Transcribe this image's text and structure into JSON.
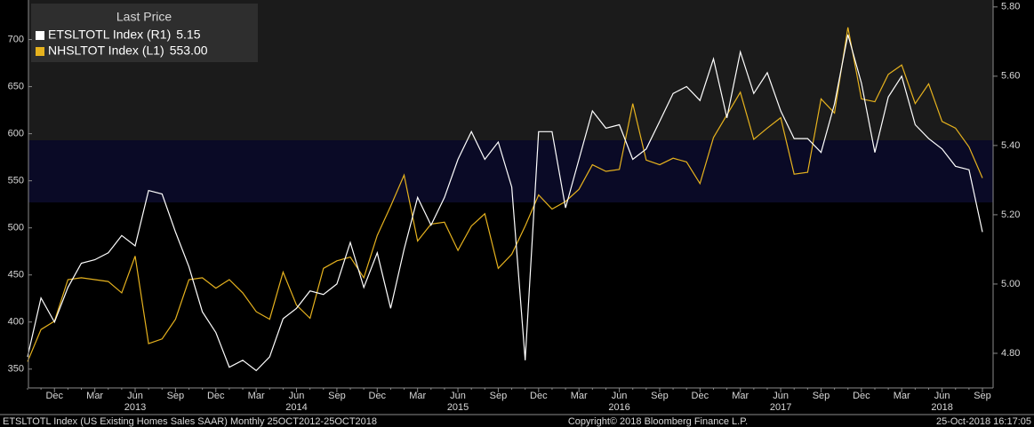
{
  "chart_data": {
    "type": "line",
    "legend_title": "Last Price",
    "categories": [
      null,
      null,
      "Dec",
      null,
      null,
      "Mar",
      null,
      null,
      "Jun",
      null,
      null,
      "Sep",
      null,
      null,
      "Dec",
      null,
      null,
      "Mar",
      null,
      null,
      "Jun",
      null,
      null,
      "Sep",
      null,
      null,
      "Dec",
      null,
      null,
      "Mar",
      null,
      null,
      "Jun",
      null,
      null,
      "Sep",
      null,
      null,
      "Dec",
      null,
      null,
      "Mar",
      null,
      null,
      "Jun",
      null,
      null,
      "Sep",
      null,
      null,
      "Dec",
      null,
      null,
      "Mar",
      null,
      null,
      "Jun",
      null,
      null,
      "Sep",
      null,
      null,
      "Dec",
      null,
      null,
      "Mar",
      null,
      null,
      "Jun",
      null,
      null,
      "Sep"
    ],
    "year_labels": [
      null,
      null,
      null,
      null,
      null,
      null,
      null,
      null,
      "2013",
      null,
      null,
      null,
      null,
      null,
      null,
      null,
      null,
      null,
      null,
      null,
      "2014",
      null,
      null,
      null,
      null,
      null,
      null,
      null,
      null,
      null,
      null,
      null,
      "2015",
      null,
      null,
      null,
      null,
      null,
      null,
      null,
      null,
      null,
      null,
      null,
      "2016",
      null,
      null,
      null,
      null,
      null,
      null,
      null,
      null,
      null,
      null,
      null,
      "2017",
      null,
      null,
      null,
      null,
      null,
      null,
      null,
      null,
      null,
      null,
      null,
      "2018",
      null,
      null,
      null
    ],
    "series": [
      {
        "name": "ETSLTOTL Index (R1)",
        "last_label": "5.15",
        "color": "#ffffff",
        "axis": "y2",
        "values": [
          4.79,
          4.96,
          4.89,
          4.99,
          5.06,
          5.07,
          5.09,
          5.14,
          5.11,
          5.27,
          5.26,
          5.15,
          5.05,
          4.92,
          4.86,
          4.76,
          4.78,
          4.75,
          4.79,
          4.9,
          4.93,
          4.98,
          4.97,
          5.0,
          5.12,
          4.99,
          5.09,
          4.93,
          5.1,
          5.25,
          5.17,
          5.25,
          5.36,
          5.44,
          5.36,
          5.41,
          5.28,
          4.78,
          5.44,
          5.44,
          5.22,
          5.36,
          5.5,
          5.45,
          5.46,
          5.36,
          5.39,
          5.47,
          5.55,
          5.57,
          5.53,
          5.65,
          5.48,
          5.67,
          5.55,
          5.61,
          5.5,
          5.42,
          5.42,
          5.38,
          5.52,
          5.72,
          5.58,
          5.38,
          5.54,
          5.6,
          5.46,
          5.42,
          5.39,
          5.34,
          5.33,
          5.15
        ]
      },
      {
        "name": "NHSLTOT Index (L1)",
        "last_label": "553.00",
        "color": "#e6b21e",
        "axis": "y",
        "values": [
          358,
          392,
          401,
          445,
          447,
          445,
          443,
          431,
          470,
          377,
          382,
          403,
          445,
          447,
          436,
          445,
          431,
          411,
          403,
          453,
          418,
          404,
          457,
          465,
          469,
          447,
          492,
          523,
          556,
          486,
          504,
          506,
          476,
          502,
          515,
          457,
          472,
          502,
          535,
          520,
          528,
          541,
          567,
          560,
          562,
          632,
          572,
          567,
          574,
          570,
          547,
          596,
          620,
          644,
          594,
          606,
          617,
          557,
          559,
          637,
          622,
          713,
          637,
          634,
          663,
          673,
          632,
          653,
          613,
          606,
          586,
          553
        ]
      }
    ],
    "ylim": [
      330,
      742
    ],
    "yticks": [
      350,
      400,
      450,
      500,
      550,
      600,
      650,
      700
    ],
    "y2lim": [
      4.7,
      5.82
    ],
    "y2ticks": [
      {
        "value": 4.8,
        "label": "4.80"
      },
      {
        "value": 5.0,
        "label": "5.00"
      },
      {
        "value": 5.2,
        "label": "5.20"
      },
      {
        "value": 5.4,
        "label": "5.40"
      },
      {
        "value": 5.6,
        "label": "5.60"
      },
      {
        "value": 5.8,
        "label": "5.80"
      }
    ],
    "footer_left": "ETSLTOTL Index (US Existing Homes Sales SAAR)  Monthly 25OCT2012-25OCT2018",
    "footer_center": "Copyright© 2018 Bloomberg Finance L.P.",
    "footer_right": "25-Oct-2018 16:17:05"
  }
}
